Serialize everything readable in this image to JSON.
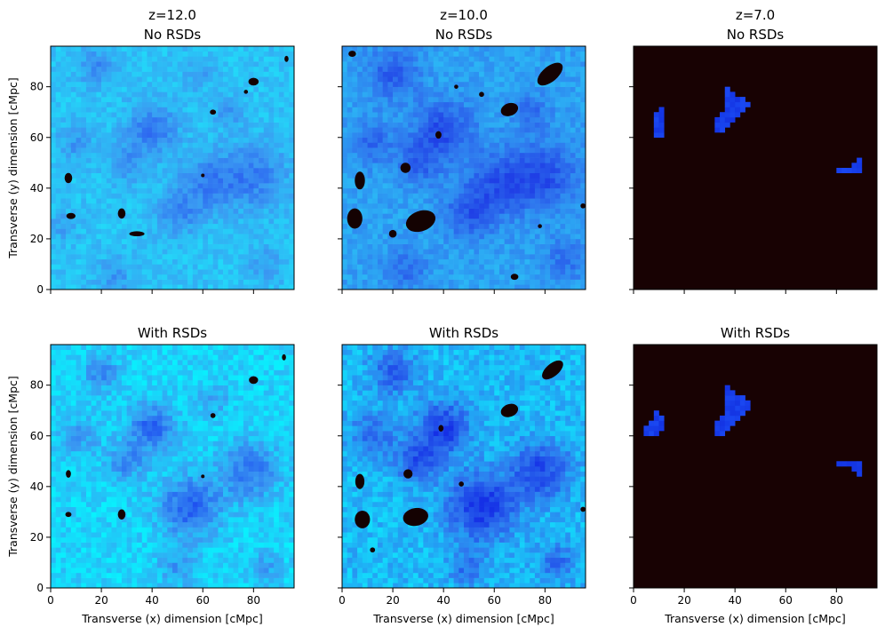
{
  "figure": {
    "panels": [
      {
        "title_lines": [
          "z=12.0",
          "No RSDs"
        ],
        "ylabel": "Transverse (y) dimension [cMpc]",
        "xlabel": ""
      },
      {
        "title_lines": [
          "z=10.0",
          "No RSDs"
        ],
        "ylabel": "",
        "xlabel": ""
      },
      {
        "title_lines": [
          "z=7.0",
          "No RSDs"
        ],
        "ylabel": "",
        "xlabel": ""
      },
      {
        "title_lines": [
          "With RSDs"
        ],
        "ylabel": "Transverse (y) dimension [cMpc]",
        "xlabel": "Transverse (x) dimension [cMpc]"
      },
      {
        "title_lines": [
          "With RSDs"
        ],
        "ylabel": "",
        "xlabel": "Transverse (x) dimension [cMpc]"
      },
      {
        "title_lines": [
          "With RSDs"
        ],
        "ylabel": "",
        "xlabel": "Transverse (x) dimension [cMpc]"
      }
    ]
  },
  "chart_data": [
    {
      "type": "heatmap",
      "title": "z=12.0 No RSDs",
      "redshift": 12.0,
      "rsd": false,
      "xlabel": "",
      "ylabel": "Transverse (y) dimension [cMpc]",
      "xlim": [
        0,
        96
      ],
      "ylim": [
        0,
        96
      ],
      "xticks": [
        0,
        20,
        40,
        60,
        80
      ],
      "yticks": [
        0,
        20,
        40,
        60,
        80
      ],
      "show_xticklabels": false,
      "show_yticklabels": true,
      "colors": {
        "background": "#22d8f8",
        "mid": "#3a9af2",
        "deep": "#2a5ef0",
        "hole": "#140202"
      },
      "blobs": [
        {
          "x": 18,
          "y": 88,
          "r": 5,
          "level": 0.45
        },
        {
          "x": 40,
          "y": 63,
          "r": 7,
          "level": 0.6
        },
        {
          "x": 30,
          "y": 50,
          "r": 5,
          "level": 0.4
        },
        {
          "x": 62,
          "y": 42,
          "r": 8,
          "level": 0.5
        },
        {
          "x": 80,
          "y": 45,
          "r": 9,
          "level": 0.55
        },
        {
          "x": 50,
          "y": 30,
          "r": 6,
          "level": 0.45
        },
        {
          "x": 10,
          "y": 58,
          "r": 5,
          "level": 0.35
        },
        {
          "x": 70,
          "y": 70,
          "r": 4,
          "level": 0.35
        },
        {
          "x": 25,
          "y": 5,
          "r": 5,
          "level": 0.35
        },
        {
          "x": 85,
          "y": 10,
          "r": 5,
          "level": 0.3
        },
        {
          "x": 5,
          "y": 25,
          "r": 4,
          "level": 0.3
        },
        {
          "x": 58,
          "y": 85,
          "r": 4,
          "level": 0.3
        }
      ],
      "holes": [
        {
          "x": 80,
          "y": 82,
          "rx": 2,
          "ry": 1.5,
          "angle": 0
        },
        {
          "x": 77,
          "y": 78,
          "rx": 0.8,
          "ry": 0.8,
          "angle": 0
        },
        {
          "x": 64,
          "y": 70,
          "rx": 1.2,
          "ry": 1,
          "angle": 0
        },
        {
          "x": 93,
          "y": 91,
          "rx": 0.8,
          "ry": 1.2,
          "angle": 0
        },
        {
          "x": 7,
          "y": 44,
          "rx": 1.5,
          "ry": 2,
          "angle": 0
        },
        {
          "x": 8,
          "y": 29,
          "rx": 1.8,
          "ry": 1.2,
          "angle": 0
        },
        {
          "x": 28,
          "y": 30,
          "rx": 1.5,
          "ry": 2,
          "angle": 0
        },
        {
          "x": 34,
          "y": 22,
          "rx": 3,
          "ry": 1,
          "angle": 0
        },
        {
          "x": 60,
          "y": 45,
          "rx": 0.7,
          "ry": 0.7,
          "angle": 0
        }
      ]
    },
    {
      "type": "heatmap",
      "title": "z=10.0 No RSDs",
      "redshift": 10.0,
      "rsd": false,
      "xlabel": "",
      "ylabel": "",
      "xlim": [
        0,
        96
      ],
      "ylim": [
        0,
        96
      ],
      "xticks": [
        0,
        20,
        40,
        60,
        80
      ],
      "yticks": [
        0,
        20,
        40,
        60,
        80
      ],
      "show_xticklabels": false,
      "show_yticklabels": false,
      "colors": {
        "background": "#2bb8f5",
        "mid": "#2f78ee",
        "deep": "#1f3fe6",
        "hole": "#140202"
      },
      "blobs": [
        {
          "x": 20,
          "y": 85,
          "r": 7,
          "level": 0.55
        },
        {
          "x": 40,
          "y": 63,
          "r": 8,
          "level": 0.7
        },
        {
          "x": 30,
          "y": 50,
          "r": 6,
          "level": 0.5
        },
        {
          "x": 62,
          "y": 42,
          "r": 9,
          "level": 0.6
        },
        {
          "x": 80,
          "y": 45,
          "r": 9,
          "level": 0.65
        },
        {
          "x": 50,
          "y": 30,
          "r": 7,
          "level": 0.55
        },
        {
          "x": 12,
          "y": 58,
          "r": 6,
          "level": 0.45
        },
        {
          "x": 75,
          "y": 70,
          "r": 5,
          "level": 0.4
        },
        {
          "x": 25,
          "y": 8,
          "r": 6,
          "level": 0.4
        },
        {
          "x": 88,
          "y": 12,
          "r": 6,
          "level": 0.4
        }
      ],
      "holes": [
        {
          "x": 82,
          "y": 85,
          "rx": 6,
          "ry": 3,
          "angle": -40
        },
        {
          "x": 66,
          "y": 71,
          "rx": 3.5,
          "ry": 2.5,
          "angle": -20
        },
        {
          "x": 5,
          "y": 28,
          "rx": 3,
          "ry": 4,
          "angle": 0
        },
        {
          "x": 31,
          "y": 27,
          "rx": 6,
          "ry": 4,
          "angle": -20
        },
        {
          "x": 7,
          "y": 43,
          "rx": 2,
          "ry": 3.5,
          "angle": 0
        },
        {
          "x": 25,
          "y": 48,
          "rx": 2,
          "ry": 2,
          "angle": 0
        },
        {
          "x": 38,
          "y": 61,
          "rx": 1.2,
          "ry": 1.5,
          "angle": 0
        },
        {
          "x": 4,
          "y": 93,
          "rx": 1.5,
          "ry": 1.2,
          "angle": 0
        },
        {
          "x": 20,
          "y": 22,
          "rx": 1.5,
          "ry": 1.5,
          "angle": 0
        },
        {
          "x": 95,
          "y": 33,
          "rx": 1,
          "ry": 1,
          "angle": 0
        },
        {
          "x": 68,
          "y": 5,
          "rx": 1.5,
          "ry": 1.2,
          "angle": 0
        },
        {
          "x": 55,
          "y": 77,
          "rx": 1,
          "ry": 1,
          "angle": 0
        },
        {
          "x": 45,
          "y": 80,
          "rx": 0.8,
          "ry": 0.8,
          "angle": 0
        },
        {
          "x": 78,
          "y": 25,
          "rx": 0.8,
          "ry": 0.8,
          "angle": 0
        }
      ]
    },
    {
      "type": "heatmap",
      "title": "z=7.0 No RSDs",
      "redshift": 7.0,
      "rsd": false,
      "xlabel": "",
      "ylabel": "",
      "xlim": [
        0,
        96
      ],
      "ylim": [
        0,
        96
      ],
      "xticks": [
        0,
        20,
        40,
        60,
        80
      ],
      "yticks": [
        0,
        20,
        40,
        60,
        80
      ],
      "show_xticklabels": false,
      "show_yticklabels": false,
      "colors": {
        "background": "#180203",
        "region": "#1a48f2",
        "hole": "#180203"
      },
      "regions": [
        [
          [
            9,
            60
          ],
          [
            11,
            60
          ],
          [
            12,
            65
          ],
          [
            11,
            72
          ],
          [
            9,
            70
          ],
          [
            8,
            66
          ]
        ],
        [
          [
            33,
            62
          ],
          [
            36,
            62
          ],
          [
            40,
            66
          ],
          [
            44,
            70
          ],
          [
            46,
            73
          ],
          [
            42,
            76
          ],
          [
            38,
            80
          ],
          [
            36,
            79
          ],
          [
            37,
            74
          ],
          [
            35,
            70
          ],
          [
            32,
            66
          ]
        ],
        [
          [
            76,
            49
          ],
          [
            86,
            48
          ],
          [
            90,
            52
          ],
          [
            91,
            45
          ],
          [
            88,
            46
          ],
          [
            80,
            47
          ]
        ]
      ]
    },
    {
      "type": "heatmap",
      "title": "With RSDs",
      "redshift": 12.0,
      "rsd": true,
      "xlabel": "Transverse (x) dimension [cMpc]",
      "ylabel": "Transverse (y) dimension [cMpc]",
      "xlim": [
        0,
        96
      ],
      "ylim": [
        0,
        96
      ],
      "xticks": [
        0,
        20,
        40,
        60,
        80
      ],
      "yticks": [
        0,
        20,
        40,
        60,
        80
      ],
      "show_xticklabels": true,
      "show_yticklabels": true,
      "colors": {
        "background": "#08f2fd",
        "mid": "#3a9af2",
        "deep": "#1e4ff0",
        "hole": "#140202"
      },
      "blobs": [
        {
          "x": 40,
          "y": 63,
          "r": 6,
          "level": 0.7
        },
        {
          "x": 55,
          "y": 32,
          "r": 8,
          "level": 0.7
        },
        {
          "x": 78,
          "y": 46,
          "r": 8,
          "level": 0.55
        },
        {
          "x": 30,
          "y": 50,
          "r": 5,
          "level": 0.45
        },
        {
          "x": 20,
          "y": 85,
          "r": 5,
          "level": 0.4
        },
        {
          "x": 12,
          "y": 60,
          "r": 5,
          "level": 0.35
        },
        {
          "x": 50,
          "y": 8,
          "r": 5,
          "level": 0.35
        },
        {
          "x": 85,
          "y": 8,
          "r": 4,
          "level": 0.3
        },
        {
          "x": 65,
          "y": 75,
          "r": 4,
          "level": 0.3
        }
      ],
      "holes": [
        {
          "x": 80,
          "y": 82,
          "rx": 1.8,
          "ry": 1.5,
          "angle": 0
        },
        {
          "x": 92,
          "y": 91,
          "rx": 0.8,
          "ry": 1.2,
          "angle": 0
        },
        {
          "x": 64,
          "y": 68,
          "rx": 1,
          "ry": 1,
          "angle": 0
        },
        {
          "x": 7,
          "y": 45,
          "rx": 1,
          "ry": 1.5,
          "angle": 0
        },
        {
          "x": 7,
          "y": 29,
          "rx": 1.2,
          "ry": 1,
          "angle": 0
        },
        {
          "x": 28,
          "y": 29,
          "rx": 1.5,
          "ry": 2,
          "angle": 0
        },
        {
          "x": 60,
          "y": 44,
          "rx": 0.7,
          "ry": 0.7,
          "angle": 0
        }
      ]
    },
    {
      "type": "heatmap",
      "title": "With RSDs",
      "redshift": 10.0,
      "rsd": true,
      "xlabel": "Transverse (x) dimension [cMpc]",
      "ylabel": "",
      "xlim": [
        0,
        96
      ],
      "ylim": [
        0,
        96
      ],
      "xticks": [
        0,
        20,
        40,
        60,
        80
      ],
      "yticks": [
        0,
        20,
        40,
        60,
        80
      ],
      "show_xticklabels": true,
      "show_yticklabels": false,
      "colors": {
        "background": "#12dcfb",
        "mid": "#2f78ee",
        "deep": "#1530e6",
        "hole": "#140202"
      },
      "blobs": [
        {
          "x": 40,
          "y": 63,
          "r": 7,
          "level": 0.75
        },
        {
          "x": 55,
          "y": 32,
          "r": 9,
          "level": 0.8
        },
        {
          "x": 78,
          "y": 46,
          "r": 8,
          "level": 0.65
        },
        {
          "x": 30,
          "y": 50,
          "r": 6,
          "level": 0.55
        },
        {
          "x": 20,
          "y": 85,
          "r": 6,
          "level": 0.5
        },
        {
          "x": 12,
          "y": 60,
          "r": 6,
          "level": 0.45
        },
        {
          "x": 50,
          "y": 8,
          "r": 5,
          "level": 0.4
        },
        {
          "x": 85,
          "y": 10,
          "r": 5,
          "level": 0.4
        }
      ],
      "holes": [
        {
          "x": 83,
          "y": 86,
          "rx": 5,
          "ry": 2.5,
          "angle": -40
        },
        {
          "x": 66,
          "y": 70,
          "rx": 3.5,
          "ry": 2.5,
          "angle": -20
        },
        {
          "x": 8,
          "y": 27,
          "rx": 3,
          "ry": 3.5,
          "angle": 0
        },
        {
          "x": 29,
          "y": 28,
          "rx": 5,
          "ry": 3.5,
          "angle": -10
        },
        {
          "x": 7,
          "y": 42,
          "rx": 1.8,
          "ry": 3,
          "angle": 0
        },
        {
          "x": 26,
          "y": 45,
          "rx": 1.8,
          "ry": 1.8,
          "angle": 0
        },
        {
          "x": 39,
          "y": 63,
          "rx": 1,
          "ry": 1.3,
          "angle": 0
        },
        {
          "x": 47,
          "y": 41,
          "rx": 1,
          "ry": 1,
          "angle": 0
        },
        {
          "x": 95,
          "y": 31,
          "rx": 1,
          "ry": 1,
          "angle": 0
        },
        {
          "x": 12,
          "y": 15,
          "rx": 1,
          "ry": 1,
          "angle": 0
        }
      ]
    },
    {
      "type": "heatmap",
      "title": "With RSDs",
      "redshift": 7.0,
      "rsd": true,
      "xlabel": "Transverse (x) dimension [cMpc]",
      "ylabel": "",
      "xlim": [
        0,
        96
      ],
      "ylim": [
        0,
        96
      ],
      "xticks": [
        0,
        20,
        40,
        60,
        80
      ],
      "yticks": [
        0,
        20,
        40,
        60,
        80
      ],
      "show_xticklabels": true,
      "show_yticklabels": false,
      "colors": {
        "background": "#180203",
        "region": "#1a48f2",
        "hole": "#180203"
      },
      "regions": [
        [
          [
            5,
            60
          ],
          [
            11,
            61
          ],
          [
            12,
            66
          ],
          [
            10,
            72
          ],
          [
            8,
            68
          ],
          [
            5,
            64
          ]
        ],
        [
          [
            33,
            60
          ],
          [
            36,
            60
          ],
          [
            40,
            66
          ],
          [
            45,
            70
          ],
          [
            47,
            72
          ],
          [
            42,
            76
          ],
          [
            38,
            80
          ],
          [
            36,
            78
          ],
          [
            37,
            73
          ],
          [
            35,
            68
          ],
          [
            32,
            64
          ]
        ],
        [
          [
            76,
            48
          ],
          [
            86,
            47
          ],
          [
            91,
            42
          ],
          [
            90,
            50
          ],
          [
            86,
            50
          ]
        ]
      ]
    }
  ]
}
